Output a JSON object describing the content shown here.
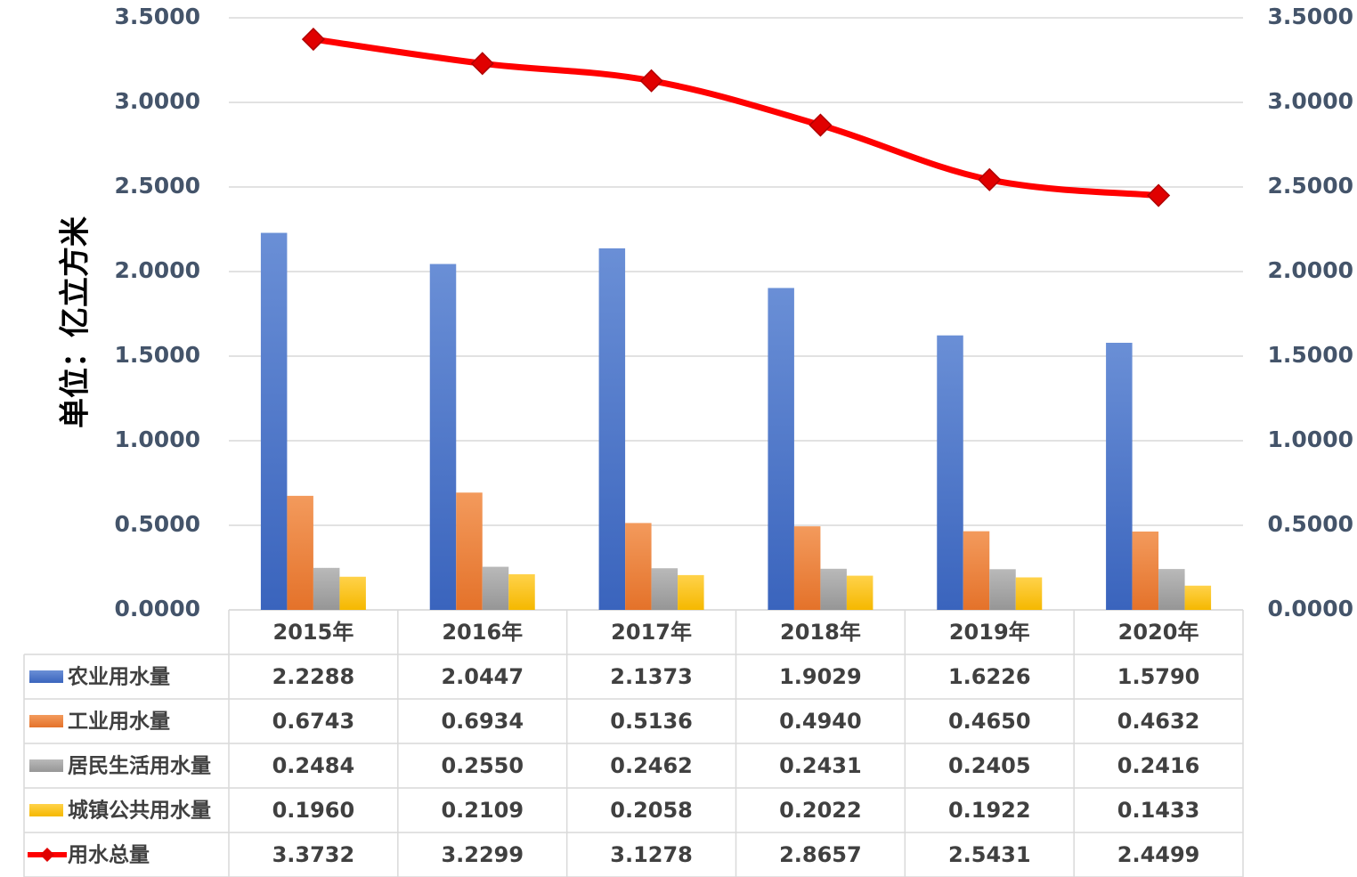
{
  "chart_data": {
    "type": "bar",
    "categories": [
      "2015年",
      "2016年",
      "2017年",
      "2018年",
      "2019年",
      "2020年"
    ],
    "ylabel": "单位：亿立方米",
    "ylim": [
      0,
      3.5
    ],
    "yticks": [
      "0.0000",
      "0.5000",
      "1.0000",
      "1.5000",
      "2.0000",
      "2.5000",
      "3.0000",
      "3.5000"
    ],
    "y2ticks": [
      "0.0000",
      "0.5000",
      "1.0000",
      "1.5000",
      "2.0000",
      "2.5000",
      "3.0000",
      "3.5000"
    ],
    "grid": true,
    "legend": "data-table",
    "series": [
      {
        "name": "农业用水量",
        "type": "bar",
        "color": "#4472c4",
        "values": [
          2.2288,
          2.0447,
          2.1373,
          1.9029,
          1.6226,
          1.579
        ],
        "labels": [
          "2.2288",
          "2.0447",
          "2.1373",
          "1.9029",
          "1.6226",
          "1.5790"
        ]
      },
      {
        "name": "工业用水量",
        "type": "bar",
        "color": "#ed7d31",
        "values": [
          0.6743,
          0.6934,
          0.5136,
          0.494,
          0.465,
          0.4632
        ],
        "labels": [
          "0.6743",
          "0.6934",
          "0.5136",
          "0.4940",
          "0.4650",
          "0.4632"
        ]
      },
      {
        "name": "居民生活用水量",
        "type": "bar",
        "color": "#a5a5a5",
        "values": [
          0.2484,
          0.255,
          0.2462,
          0.2431,
          0.2405,
          0.2416
        ],
        "labels": [
          "0.2484",
          "0.2550",
          "0.2462",
          "0.2431",
          "0.2405",
          "0.2416"
        ]
      },
      {
        "name": "城镇公共用水量",
        "type": "bar",
        "color": "#ffc000",
        "values": [
          0.196,
          0.2109,
          0.2058,
          0.2022,
          0.1922,
          0.1433
        ],
        "labels": [
          "0.1960",
          "0.2109",
          "0.2058",
          "0.2022",
          "0.1922",
          "0.1433"
        ]
      },
      {
        "name": "用水总量",
        "type": "line",
        "color": "#ff0000",
        "values": [
          3.3732,
          3.2299,
          3.1278,
          2.8657,
          2.5431,
          2.4499
        ],
        "labels": [
          "3.3732",
          "3.2299",
          "3.1278",
          "2.8657",
          "2.5431",
          "2.4499"
        ]
      }
    ]
  }
}
